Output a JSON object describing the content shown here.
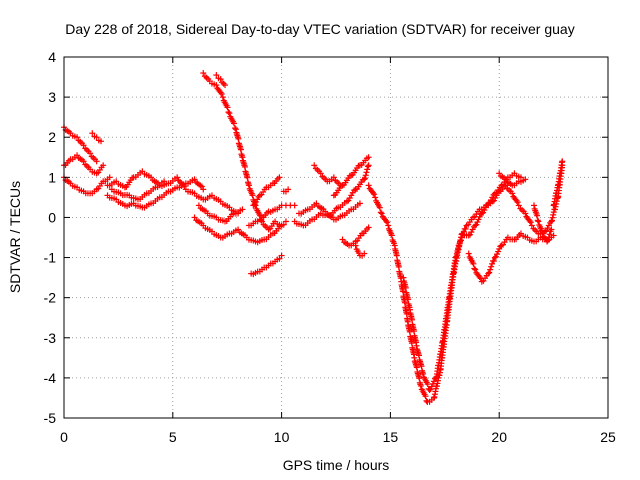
{
  "chart_data": {
    "type": "scatter",
    "title": "Day 228 of 2018, Sidereal Day-to-day VTEC variation (SDTVAR) for receiver guay",
    "xlabel": "GPS time / hours",
    "ylabel": "SDTVAR / TECUs",
    "xlim": [
      0,
      25
    ],
    "ylim": [
      -5,
      4
    ],
    "xticks": [
      0,
      5,
      10,
      15,
      20,
      25
    ],
    "yticks": [
      -5,
      -4,
      -3,
      -2,
      -1,
      0,
      1,
      2,
      3,
      4
    ],
    "grid": true,
    "marker": "plus",
    "colors": {
      "series": "#ff0000",
      "axis": "#000000",
      "grid": "#a0a0a0"
    },
    "series": [
      {
        "tracks": [
          {
            "x": [
              0.0,
              0.3,
              0.6,
              0.9,
              1.2,
              1.5
            ],
            "y": [
              2.25,
              2.1,
              2.0,
              1.8,
              1.6,
              1.4
            ]
          },
          {
            "x": [
              1.3,
              1.5,
              1.7
            ],
            "y": [
              2.1,
              2.0,
              1.9
            ]
          },
          {
            "x": [
              0.0,
              0.3,
              0.6,
              0.9,
              1.2,
              1.5,
              1.8
            ],
            "y": [
              1.3,
              1.45,
              1.55,
              1.4,
              1.2,
              1.1,
              1.3
            ]
          },
          {
            "x": [
              0.0,
              0.3,
              0.6,
              0.9,
              1.2,
              1.5,
              1.8,
              2.1
            ],
            "y": [
              1.0,
              0.85,
              0.75,
              0.65,
              0.6,
              0.7,
              0.9,
              1.0
            ]
          },
          {
            "x": [
              2.0,
              2.4,
              2.8,
              3.2,
              3.6,
              4.0,
              4.4,
              4.8,
              5.2,
              5.6,
              6.0,
              6.4,
              6.8,
              7.2,
              7.6,
              8.0
            ],
            "y": [
              0.8,
              0.9,
              0.75,
              1.0,
              1.15,
              1.0,
              0.8,
              0.85,
              1.0,
              0.7,
              0.6,
              0.45,
              0.55,
              0.4,
              0.25,
              0.1
            ]
          },
          {
            "x": [
              2.0,
              2.4,
              2.8,
              3.2,
              3.6,
              4.0,
              4.4,
              4.8,
              5.2,
              5.6,
              6.0,
              6.4
            ],
            "y": [
              0.55,
              0.45,
              0.3,
              0.35,
              0.25,
              0.35,
              0.5,
              0.65,
              0.75,
              0.85,
              0.95,
              0.7
            ]
          },
          {
            "x": [
              2.2,
              2.6,
              3.0,
              3.4,
              3.8,
              4.2,
              4.6
            ],
            "y": [
              0.7,
              0.6,
              0.55,
              0.45,
              0.6,
              0.75,
              0.9
            ]
          },
          {
            "x": [
              6.0,
              6.4,
              6.8,
              7.2,
              7.6,
              8.0,
              8.4,
              8.8,
              9.2,
              9.6,
              10.0
            ],
            "y": [
              0.0,
              -0.2,
              -0.35,
              -0.5,
              -0.4,
              -0.3,
              -0.5,
              -0.6,
              -0.55,
              -0.4,
              -0.2
            ]
          },
          {
            "x": [
              6.2,
              6.6,
              7.0,
              7.4,
              7.8,
              8.2
            ],
            "y": [
              0.3,
              0.1,
              0.0,
              -0.1,
              0.1,
              0.2
            ]
          },
          {
            "x": [
              6.4,
              6.7,
              7.0,
              7.3,
              7.6,
              7.9,
              8.2,
              8.5,
              8.8,
              9.1,
              9.4,
              9.7,
              10.0,
              10.2
            ],
            "y": [
              3.6,
              3.4,
              3.3,
              3.0,
              2.6,
              2.2,
              1.5,
              0.8,
              0.3,
              -0.1,
              -0.3,
              -0.1,
              -0.2,
              -0.1
            ]
          },
          {
            "x": [
              7.0,
              7.2,
              7.4
            ],
            "y": [
              3.55,
              3.45,
              3.3
            ]
          },
          {
            "x": [
              8.7,
              9.0,
              9.3,
              9.6,
              9.9
            ],
            "y": [
              0.3,
              0.55,
              0.75,
              0.85,
              1.0
            ]
          },
          {
            "x": [
              8.5,
              8.8,
              9.1,
              9.4,
              9.7,
              10.0
            ],
            "y": [
              -0.2,
              -0.1,
              0.0,
              0.15,
              0.2,
              0.3
            ]
          },
          {
            "x": [
              8.6,
              8.9,
              9.2,
              9.5,
              9.8,
              10.0
            ],
            "y": [
              -1.4,
              -1.35,
              -1.25,
              -1.15,
              -1.05,
              -0.95
            ]
          },
          {
            "x": [
              10.2,
              10.4,
              10.6
            ],
            "y": [
              0.3,
              0.3,
              0.3
            ]
          },
          {
            "x": [
              10.1,
              10.3
            ],
            "y": [
              0.65,
              0.7
            ]
          },
          {
            "x": [
              10.6,
              11.0,
              11.4,
              11.8,
              12.2,
              12.6,
              13.0,
              13.4,
              13.8,
              14.0
            ],
            "y": [
              -0.1,
              -0.2,
              -0.05,
              0.1,
              0.05,
              0.25,
              0.4,
              0.7,
              0.95,
              1.3
            ]
          },
          {
            "x": [
              10.8,
              11.2,
              11.6,
              12.0,
              12.4,
              12.8,
              13.2,
              13.6
            ],
            "y": [
              0.1,
              0.2,
              0.35,
              0.15,
              -0.05,
              0.05,
              0.2,
              0.35
            ]
          },
          {
            "x": [
              11.5,
              11.8,
              12.1,
              12.4,
              12.7
            ],
            "y": [
              1.3,
              1.1,
              0.9,
              1.0,
              0.8
            ]
          },
          {
            "x": [
              12.4,
              12.8,
              13.2,
              13.6,
              14.0
            ],
            "y": [
              0.55,
              0.8,
              1.05,
              1.3,
              1.5
            ]
          },
          {
            "x": [
              12.8,
              13.1,
              13.4,
              13.7,
              14.0
            ],
            "y": [
              -0.55,
              -0.7,
              -0.6,
              -0.4,
              -0.25
            ]
          },
          {
            "x": [
              13.4,
              13.6,
              13.8
            ],
            "y": [
              -0.7,
              -0.95,
              -0.9
            ]
          },
          {
            "x": [
              14.0,
              14.3,
              14.6,
              14.9,
              15.2,
              15.5,
              15.8,
              16.1,
              16.4,
              16.7,
              17.0,
              17.3,
              17.6,
              17.9,
              18.2,
              18.5,
              18.8,
              19.1,
              19.4,
              19.7,
              20.0,
              20.3,
              20.6,
              20.9,
              21.2,
              21.5,
              21.8,
              22.1,
              22.4,
              22.7,
              22.9
            ],
            "y": [
              0.8,
              0.5,
              0.1,
              -0.2,
              -0.7,
              -1.6,
              -2.6,
              -3.5,
              -4.2,
              -4.6,
              -4.5,
              -3.8,
              -2.6,
              -1.4,
              -0.6,
              -0.2,
              0.0,
              0.2,
              0.3,
              0.4,
              0.65,
              0.8,
              0.6,
              0.3,
              0.1,
              -0.2,
              -0.4,
              -0.35,
              -0.1,
              0.5,
              1.3
            ]
          },
          {
            "x": [
              15.6,
              15.9,
              16.2,
              16.5,
              16.8,
              17.1,
              17.4,
              17.7,
              18.0,
              18.3,
              18.6,
              18.9,
              19.2,
              19.5,
              19.8,
              20.1,
              20.4,
              20.7,
              21.0
            ],
            "y": [
              -1.5,
              -2.3,
              -3.2,
              -3.9,
              -4.3,
              -4.0,
              -3.1,
              -2.0,
              -1.0,
              -0.4,
              -0.45,
              -0.2,
              0.1,
              0.35,
              0.6,
              0.8,
              1.0,
              1.1,
              1.0
            ]
          },
          {
            "x": [
              18.6,
              18.9,
              19.2,
              19.5,
              19.8,
              20.1,
              20.4,
              20.7,
              21.0,
              21.3,
              21.6,
              21.9,
              22.2,
              22.5
            ],
            "y": [
              -0.9,
              -1.3,
              -1.6,
              -1.4,
              -1.0,
              -0.7,
              -0.5,
              -0.55,
              -0.4,
              -0.5,
              -0.6,
              -0.5,
              -0.55,
              -0.45
            ]
          },
          {
            "x": [
              21.6,
              21.8,
              22.0,
              22.2,
              22.4
            ],
            "y": [
              0.3,
              -0.1,
              -0.4,
              -0.6,
              -0.3
            ]
          },
          {
            "x": [
              22.5,
              22.7,
              22.9
            ],
            "y": [
              0.3,
              0.8,
              1.4
            ]
          },
          {
            "x": [
              20.0,
              20.3,
              20.6,
              20.9,
              21.2
            ],
            "y": [
              1.1,
              0.95,
              0.8,
              0.9,
              0.95
            ]
          }
        ]
      }
    ]
  }
}
